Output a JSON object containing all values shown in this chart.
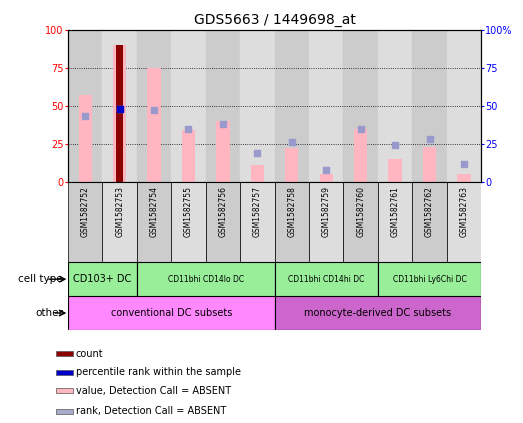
{
  "title": "GDS5663 / 1449698_at",
  "samples": [
    "GSM1582752",
    "GSM1582753",
    "GSM1582754",
    "GSM1582755",
    "GSM1582756",
    "GSM1582757",
    "GSM1582758",
    "GSM1582759",
    "GSM1582760",
    "GSM1582761",
    "GSM1582762",
    "GSM1582763"
  ],
  "value_bars": [
    57,
    90,
    75,
    34,
    40,
    11,
    22,
    5,
    35,
    15,
    23,
    5
  ],
  "rank_dots": [
    43,
    48,
    47,
    35,
    38,
    19,
    26,
    8,
    35,
    24,
    28,
    12
  ],
  "count_bar_idx": 1,
  "count_value": 90,
  "percentile_idx": 1,
  "percentile_value": 48,
  "ylim": [
    0,
    100
  ],
  "yticks": [
    0,
    25,
    50,
    75,
    100
  ],
  "right_ytick_labels": [
    "0",
    "25",
    "50",
    "75",
    "100%"
  ],
  "cell_type_groups": [
    {
      "label": "CD103+ DC",
      "start": 0,
      "end": 2
    },
    {
      "label": "CD11bhi CD14lo DC",
      "start": 2,
      "end": 6
    },
    {
      "label": "CD11bhi CD14hi DC",
      "start": 6,
      "end": 9
    },
    {
      "label": "CD11bhi Ly6Chi DC",
      "start": 9,
      "end": 12
    }
  ],
  "other_groups": [
    {
      "label": "conventional DC subsets",
      "start": 0,
      "end": 6,
      "color": "#FF88FF"
    },
    {
      "label": "monocyte-derived DC subsets",
      "start": 6,
      "end": 12,
      "color": "#CC66CC"
    }
  ],
  "bar_color_value": "#FFB6C1",
  "bar_color_count": "#8B0000",
  "dot_color_rank": "#9999CC",
  "dot_color_percentile": "#0000CC",
  "cell_type_color": "#99EE99",
  "cell_type_label": "cell type",
  "other_label": "other",
  "col_bg_even": "#CCCCCC",
  "col_bg_odd": "#DDDDDD",
  "legend_items": [
    {
      "color": "#8B0000",
      "label": "count"
    },
    {
      "color": "#0000CC",
      "label": "percentile rank within the sample"
    },
    {
      "color": "#FFB6C1",
      "label": "value, Detection Call = ABSENT"
    },
    {
      "color": "#AAAACC",
      "label": "rank, Detection Call = ABSENT"
    }
  ]
}
